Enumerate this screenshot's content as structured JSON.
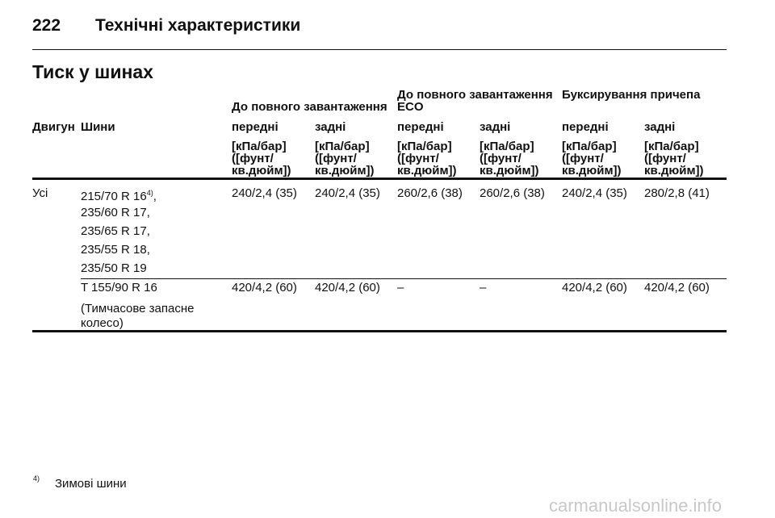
{
  "header": {
    "page_number": "222",
    "section": "Технічні характеристики"
  },
  "title": "Тиск у шинах",
  "table": {
    "group_headers": [
      "До повного завантаження",
      "До повного завантаження ECO",
      "Буксирування причепа"
    ],
    "columns": [
      "Двигун",
      "Шини",
      "передні",
      "задні",
      "передні",
      "задні",
      "передні",
      "задні"
    ],
    "units": [
      "[кПа/бар]\n([фунт/\nкв.дюйм])",
      "[кПа/бар]\n([фунт/\nкв.дюйм])",
      "[кПа/бар]\n([фунт/\nкв.дюйм])",
      "[кПа/бар]\n([фунт/\nкв.дюйм])",
      "[кПа/бар]\n([фунт/\nкв.дюйм])",
      "[кПа/бар]\n([фунт/\nкв.дюйм])"
    ],
    "rows": [
      {
        "engine": "Усі",
        "tires": [
          {
            "text": "215/70 R 16",
            "footnote": "4)",
            "after": ","
          },
          "235/60 R 17,",
          "235/65 R 17,",
          "235/55 R 18,",
          "235/50 R 19"
        ],
        "values": [
          "240/2,4 (35)",
          "240/2,4 (35)",
          "260/2,6 (38)",
          "260/2,6 (38)",
          "240/2,4 (35)",
          "280/2,8 (41)"
        ]
      },
      {
        "tires": [
          "T 155/90 R 16"
        ],
        "remark": "(Тимчасове запасне колесо)",
        "values": [
          "420/4,2 (60)",
          "420/4,2 (60)",
          "–",
          "–",
          "420/4,2 (60)",
          "420/4,2 (60)"
        ]
      }
    ]
  },
  "footnote": {
    "marker": "4)",
    "text": "Зимові шини"
  },
  "watermark": "carmanualsonline.info"
}
